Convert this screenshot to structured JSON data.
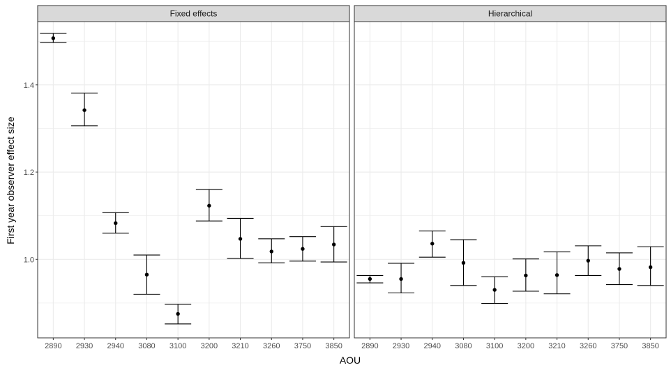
{
  "chart_data": {
    "type": "scatter",
    "subtype": "point-with-errorbars",
    "xlabel": "AOU",
    "ylabel": "First year observer effect size",
    "ylim": [
      0.82,
      1.545
    ],
    "yticks": [
      "1.0",
      "1.2",
      "1.4"
    ],
    "categories": [
      "2890",
      "2930",
      "2940",
      "3080",
      "3100",
      "3200",
      "3210",
      "3260",
      "3750",
      "3850"
    ],
    "grid": true,
    "theme": "bw",
    "panels": [
      {
        "name": "Fixed effects",
        "points": [
          {
            "x": "2890",
            "y": 1.507,
            "lower": 1.497,
            "upper": 1.518
          },
          {
            "x": "2930",
            "y": 1.342,
            "lower": 1.306,
            "upper": 1.381
          },
          {
            "x": "2940",
            "y": 1.083,
            "lower": 1.06,
            "upper": 1.107
          },
          {
            "x": "3080",
            "y": 0.965,
            "lower": 0.92,
            "upper": 1.01
          },
          {
            "x": "3100",
            "y": 0.875,
            "lower": 0.852,
            "upper": 0.897
          },
          {
            "x": "3200",
            "y": 1.123,
            "lower": 1.088,
            "upper": 1.16
          },
          {
            "x": "3210",
            "y": 1.047,
            "lower": 1.002,
            "upper": 1.094
          },
          {
            "x": "3260",
            "y": 1.018,
            "lower": 0.992,
            "upper": 1.047
          },
          {
            "x": "3750",
            "y": 1.024,
            "lower": 0.996,
            "upper": 1.052
          },
          {
            "x": "3850",
            "y": 1.034,
            "lower": 0.994,
            "upper": 1.075
          }
        ]
      },
      {
        "name": "Hierarchical",
        "points": [
          {
            "x": "2890",
            "y": 0.955,
            "lower": 0.946,
            "upper": 0.963
          },
          {
            "x": "2930",
            "y": 0.955,
            "lower": 0.923,
            "upper": 0.991
          },
          {
            "x": "2940",
            "y": 1.036,
            "lower": 1.005,
            "upper": 1.065
          },
          {
            "x": "3080",
            "y": 0.992,
            "lower": 0.94,
            "upper": 1.045
          },
          {
            "x": "3100",
            "y": 0.93,
            "lower": 0.899,
            "upper": 0.96
          },
          {
            "x": "3200",
            "y": 0.963,
            "lower": 0.927,
            "upper": 1.001
          },
          {
            "x": "3210",
            "y": 0.964,
            "lower": 0.921,
            "upper": 1.017
          },
          {
            "x": "3260",
            "y": 0.997,
            "lower": 0.963,
            "upper": 1.031
          },
          {
            "x": "3750",
            "y": 0.978,
            "lower": 0.942,
            "upper": 1.015
          },
          {
            "x": "3850",
            "y": 0.982,
            "lower": 0.94,
            "upper": 1.029
          }
        ]
      }
    ],
    "colors": {
      "points": "#000000",
      "grid": "#ebebeb",
      "panel_border": "#333333",
      "strip_fill": "#d9d9d9",
      "tick_text": "#4d4d4d"
    }
  }
}
